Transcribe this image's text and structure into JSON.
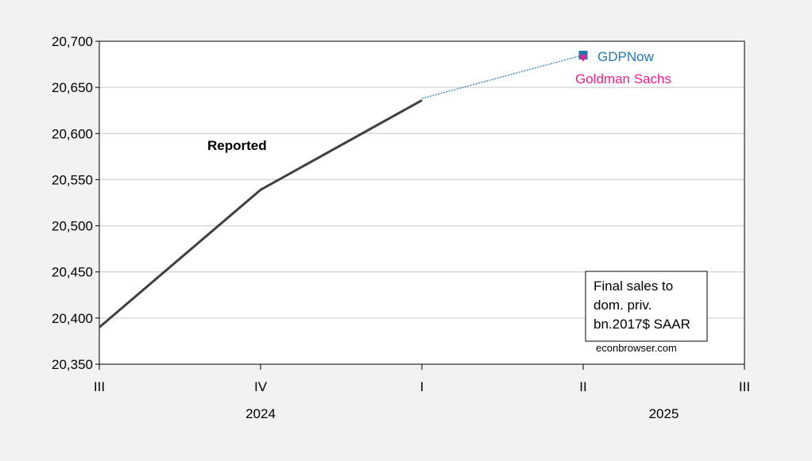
{
  "chart_data": {
    "type": "line",
    "x_categories": [
      "III",
      "IV",
      "I",
      "II",
      "III"
    ],
    "year_labels": [
      {
        "label": "2024",
        "under_category_index": 1
      },
      {
        "label": "2025",
        "under_category_index": 3.5
      }
    ],
    "yticks": [
      20350,
      20400,
      20450,
      20500,
      20550,
      20600,
      20650,
      20700
    ],
    "ytick_labels": [
      "20,350",
      "20,400",
      "20,450",
      "20,500",
      "20,550",
      "20,600",
      "20,650",
      "20,700"
    ],
    "ylim": [
      20350,
      20700
    ],
    "grid": "horizontal",
    "series": [
      {
        "name": "Reported",
        "color": "#404040",
        "style": "solid-thick",
        "x": [
          0,
          1,
          2
        ],
        "values": [
          20390,
          20539,
          20636
        ]
      },
      {
        "name": "GDPNow",
        "color": "#1f77b4",
        "style": "dotted-thin",
        "x": [
          2,
          3
        ],
        "values": [
          20638,
          20685
        ],
        "marker": "square"
      },
      {
        "name": "Goldman Sachs",
        "color": "#ee1e8c",
        "style": "marker-only",
        "x": [
          3
        ],
        "values": [
          20682
        ],
        "marker": "triangle-down"
      }
    ],
    "series_labels": [
      {
        "text": "Reported",
        "color": "#000000",
        "bold": true
      },
      {
        "text": "GDPNow",
        "color": "#1f77b4",
        "bold": false
      },
      {
        "text": "Goldman Sachs",
        "color": "#ee1e8c",
        "bold": false
      }
    ],
    "legend_box": {
      "lines": [
        "Final sales to",
        "dom. priv.",
        "bn.2017$ SAAR"
      ],
      "position": "bottom-right"
    },
    "watermark": "econbrowser.com"
  }
}
